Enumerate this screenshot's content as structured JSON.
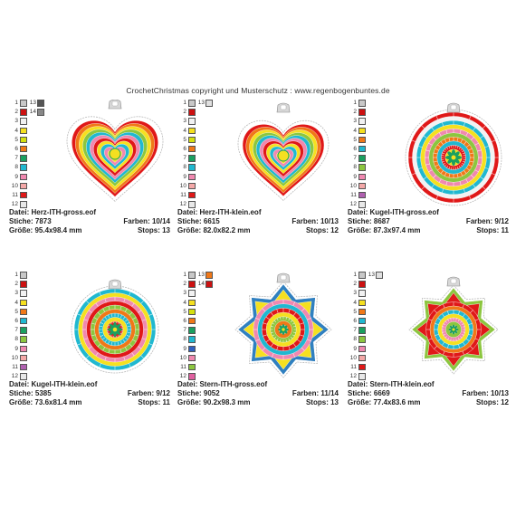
{
  "header": "CrochetChristmas   copyright und Musterschutz : www.regenbogenbuntes.de",
  "labels": {
    "datei": "Datei:",
    "stiche": "Stiche:",
    "groesse": "Größe:",
    "farben": "Farben:",
    "stops": "Stops:"
  },
  "designs": [
    {
      "shape": "heart-large",
      "file": "Herz-ITH-gross.eof",
      "stiche": "7873",
      "groesse": "95.4x98.4 mm",
      "farben": "10/14",
      "stops": "13",
      "palette": [
        {
          "n": "1",
          "c": "#c8c8c8",
          "n2": "13",
          "c2": "#555555"
        },
        {
          "n": "2",
          "c": "#cc1111",
          "n2": "14",
          "c2": "#888888"
        },
        {
          "n": "3",
          "c": "#f2f2f2"
        },
        {
          "n": "4",
          "c": "#f5e020"
        },
        {
          "n": "5",
          "c": "#d4e010"
        },
        {
          "n": "6",
          "c": "#f07818"
        },
        {
          "n": "7",
          "c": "#1aa060"
        },
        {
          "n": "8",
          "c": "#20b8d0"
        },
        {
          "n": "9",
          "c": "#f088b0"
        },
        {
          "n": "10",
          "c": "#f4a8a8"
        },
        {
          "n": "11",
          "c": "#e01818"
        },
        {
          "n": "12",
          "c": "#e8e8e8"
        }
      ]
    },
    {
      "shape": "heart-small",
      "file": "Herz-ITH-klein.eof",
      "stiche": "6615",
      "groesse": "82.0x82.2 mm",
      "farben": "10/13",
      "stops": "12",
      "palette": [
        {
          "n": "1",
          "c": "#c8c8c8",
          "n2": "13",
          "c2": "#e0e0e0"
        },
        {
          "n": "2",
          "c": "#cc1111"
        },
        {
          "n": "3",
          "c": "#f2f2f2"
        },
        {
          "n": "4",
          "c": "#f5e020"
        },
        {
          "n": "5",
          "c": "#d4e010"
        },
        {
          "n": "6",
          "c": "#f07818"
        },
        {
          "n": "7",
          "c": "#1aa060"
        },
        {
          "n": "8",
          "c": "#20b8d0"
        },
        {
          "n": "9",
          "c": "#f088b0"
        },
        {
          "n": "10",
          "c": "#f4a8a8"
        },
        {
          "n": "11",
          "c": "#e01818"
        },
        {
          "n": "12",
          "c": "#e8e8e8"
        }
      ]
    },
    {
      "shape": "ball-large",
      "file": "Kugel-ITH-gross.eof",
      "stiche": "8687",
      "groesse": "87.3x97.4 mm",
      "farben": "9/12",
      "stops": "11",
      "palette": [
        {
          "n": "1",
          "c": "#c8c8c8"
        },
        {
          "n": "2",
          "c": "#cc1111"
        },
        {
          "n": "3",
          "c": "#f2f2f2"
        },
        {
          "n": "4",
          "c": "#f5e020"
        },
        {
          "n": "5",
          "c": "#f07818"
        },
        {
          "n": "6",
          "c": "#20b8d0"
        },
        {
          "n": "7",
          "c": "#1aa060"
        },
        {
          "n": "8",
          "c": "#8cc63f"
        },
        {
          "n": "9",
          "c": "#f088b0"
        },
        {
          "n": "10",
          "c": "#f4a8a8"
        },
        {
          "n": "11",
          "c": "#b060b0"
        },
        {
          "n": "12",
          "c": "#e8e8e8"
        }
      ]
    },
    {
      "shape": "ball-small",
      "file": "Kugel-ITH-klein.eof",
      "stiche": "5385",
      "groesse": "73.6x81.4 mm",
      "farben": "9/12",
      "stops": "11",
      "palette": [
        {
          "n": "1",
          "c": "#c8c8c8"
        },
        {
          "n": "2",
          "c": "#cc1111"
        },
        {
          "n": "3",
          "c": "#f2f2f2"
        },
        {
          "n": "4",
          "c": "#f5e020"
        },
        {
          "n": "5",
          "c": "#f07818"
        },
        {
          "n": "6",
          "c": "#20b8d0"
        },
        {
          "n": "7",
          "c": "#1aa060"
        },
        {
          "n": "8",
          "c": "#8cc63f"
        },
        {
          "n": "9",
          "c": "#f088b0"
        },
        {
          "n": "10",
          "c": "#f4a8a8"
        },
        {
          "n": "11",
          "c": "#b060b0"
        },
        {
          "n": "12",
          "c": "#e8e8e8"
        }
      ]
    },
    {
      "shape": "star-large",
      "file": "Stern-ITH-gross.eof",
      "stiche": "9052",
      "groesse": "90.2x98.3 mm",
      "farben": "11/14",
      "stops": "13",
      "palette": [
        {
          "n": "1",
          "c": "#c8c8c8",
          "n2": "13",
          "c2": "#f07818"
        },
        {
          "n": "2",
          "c": "#cc1111",
          "n2": "14",
          "c2": "#cc1111"
        },
        {
          "n": "3",
          "c": "#f2f2f2"
        },
        {
          "n": "4",
          "c": "#f5e020"
        },
        {
          "n": "5",
          "c": "#d4e010"
        },
        {
          "n": "6",
          "c": "#f07818"
        },
        {
          "n": "7",
          "c": "#1aa060"
        },
        {
          "n": "8",
          "c": "#20b8d0"
        },
        {
          "n": "9",
          "c": "#3060c0"
        },
        {
          "n": "10",
          "c": "#f088b0"
        },
        {
          "n": "11",
          "c": "#8cc63f"
        },
        {
          "n": "12",
          "c": "#e060a0"
        }
      ]
    },
    {
      "shape": "star-small",
      "file": "Stern-ITH-klein.eof",
      "stiche": "6669",
      "groesse": "77.4x83.6 mm",
      "farben": "10/13",
      "stops": "12",
      "palette": [
        {
          "n": "1",
          "c": "#c8c8c8",
          "n2": "13",
          "c2": "#e0e0e0"
        },
        {
          "n": "2",
          "c": "#cc1111"
        },
        {
          "n": "3",
          "c": "#f2f2f2"
        },
        {
          "n": "4",
          "c": "#f5e020"
        },
        {
          "n": "5",
          "c": "#f07818"
        },
        {
          "n": "6",
          "c": "#20b8d0"
        },
        {
          "n": "7",
          "c": "#1aa060"
        },
        {
          "n": "8",
          "c": "#8cc63f"
        },
        {
          "n": "9",
          "c": "#f088b0"
        },
        {
          "n": "10",
          "c": "#f4a8a8"
        },
        {
          "n": "11",
          "c": "#e01818"
        },
        {
          "n": "12",
          "c": "#e8e8e8"
        }
      ]
    }
  ]
}
